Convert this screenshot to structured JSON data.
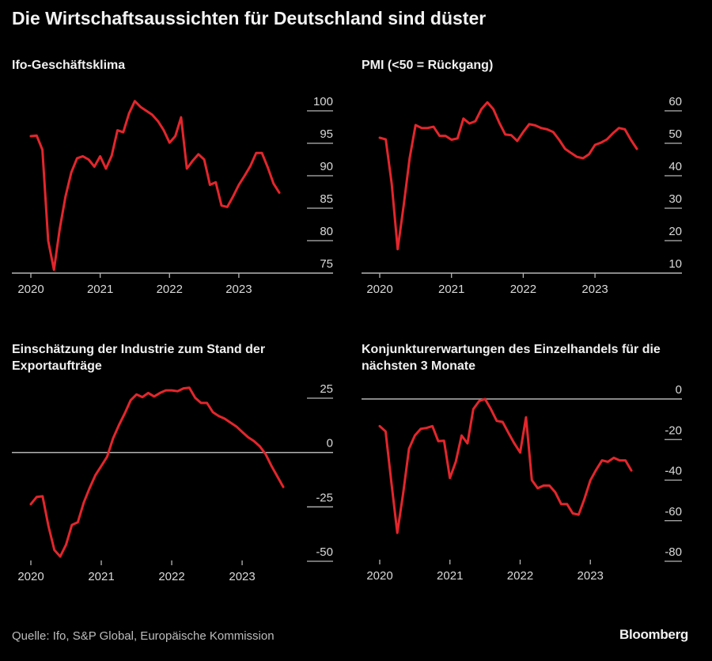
{
  "title": "Die Wirtschaftsaussichten für Deutschland sind düster",
  "source": "Quelle: Ifo, S&P Global, Europäische Kommission",
  "brand": "Bloomberg",
  "colors": {
    "line": "#e3262c",
    "background": "#000000",
    "grid": "#b5b5b5",
    "text": "#d9d9d9"
  },
  "chart_data": [
    {
      "type": "line",
      "title": "Ifo-Geschäftsklima",
      "x_start": "2020-01",
      "x_end": "2023-08",
      "x_frequency": "monthly",
      "xticks": [
        "2020",
        "2021",
        "2022",
        "2023"
      ],
      "ylim": [
        75,
        100
      ],
      "yticks": [
        75,
        80,
        85,
        90,
        95,
        100
      ],
      "y_axis": "right",
      "reference_line": 75,
      "grid": "short right-side ticks",
      "values": [
        96.1,
        96.2,
        94,
        80,
        75.5,
        81.8,
        86.8,
        90.5,
        92.7,
        93,
        92.5,
        91.4,
        93,
        91.1,
        93.1,
        97,
        96.7,
        99.6,
        101.5,
        100.6,
        100,
        99.4,
        98.4,
        97,
        95.1,
        96.1,
        99,
        91.1,
        92.3,
        93.3,
        92.5,
        88.6,
        89,
        85.4,
        85.2,
        86.8,
        88.6,
        90,
        91.5,
        93.5,
        93.5,
        91.3,
        88.8,
        87.4
      ]
    },
    {
      "type": "line",
      "title": "PMI (<50 = Rückgang)",
      "x_start": "2020-01",
      "x_end": "2023-08",
      "x_frequency": "monthly",
      "xticks": [
        "2020",
        "2021",
        "2022",
        "2023"
      ],
      "ylim": [
        10,
        60
      ],
      "yticks": [
        10,
        20,
        30,
        40,
        50,
        60
      ],
      "y_axis": "right",
      "reference_line": 10,
      "grid": "short right-side ticks",
      "values": [
        51.7,
        51.2,
        37.6,
        17.4,
        30.7,
        45.4,
        55.6,
        54.7,
        54.7,
        55.1,
        52.3,
        52.3,
        51.1,
        51.5,
        57.6,
        56.1,
        56.8,
        60.5,
        62.6,
        60.5,
        56.3,
        52.7,
        52.5,
        50.7,
        53.5,
        55.9,
        55.5,
        54.7,
        54.3,
        53.5,
        51.1,
        48.3,
        47,
        45.8,
        45.4,
        46.6,
        49.5,
        50.2,
        51.2,
        53.1,
        54.7,
        54.3,
        51.1,
        48.3
      ]
    },
    {
      "type": "line",
      "title": "Einschätzung der Industrie zum Stand der Exportaufträge",
      "x_start": "2020-01",
      "x_end": "2023-08",
      "x_frequency": "monthly",
      "xticks": [
        "2020",
        "2021",
        "2022",
        "2023"
      ],
      "ylim": [
        -50,
        25
      ],
      "yticks": [
        -50,
        -25,
        0,
        25
      ],
      "y_axis": "right",
      "reference_line": 0,
      "grid": "short right-side ticks",
      "values": [
        -23.7,
        -20.4,
        -20.1,
        -33.9,
        -44.8,
        -47.8,
        -42.4,
        -33.3,
        -32.1,
        -23.1,
        -16.4,
        -10.4,
        -6.2,
        -1.9,
        6.5,
        12.6,
        18,
        24,
        26.7,
        25.5,
        27.4,
        25.8,
        27.4,
        28.6,
        28.6,
        28.2,
        29.5,
        29.8,
        25.2,
        22.8,
        22.8,
        18.6,
        16.8,
        15.6,
        13.8,
        12,
        9.5,
        7.1,
        5.3,
        2.9,
        -0.7,
        -6.2,
        -11,
        -15.8
      ]
    },
    {
      "type": "line",
      "title": "Konjunkturerwartungen des Einzelhandels für die nächsten 3 Monate",
      "x_start": "2020-01",
      "x_end": "2023-08",
      "x_frequency": "monthly",
      "xticks": [
        "2020",
        "2021",
        "2022",
        "2023"
      ],
      "ylim": [
        -80,
        0
      ],
      "yticks": [
        -80,
        -60,
        -40,
        -20,
        0
      ],
      "y_axis": "right",
      "reference_line": 0,
      "grid": "short right-side ticks",
      "values": [
        -13.4,
        -16,
        -41.4,
        -66,
        -46.6,
        -24.5,
        -18,
        -14.7,
        -14.3,
        -13.4,
        -20.8,
        -20.6,
        -39,
        -31,
        -18,
        -21.9,
        -5,
        -1,
        0,
        -5,
        -10.8,
        -11.3,
        -16.7,
        -21.9,
        -26.4,
        -9,
        -40,
        -44,
        -42.7,
        -42.7,
        -46,
        -51.8,
        -51.8,
        -56.4,
        -57,
        -49.2,
        -40.1,
        -34.9,
        -30.3,
        -31,
        -29,
        -30.3,
        -30.3,
        -35.2
      ]
    }
  ]
}
